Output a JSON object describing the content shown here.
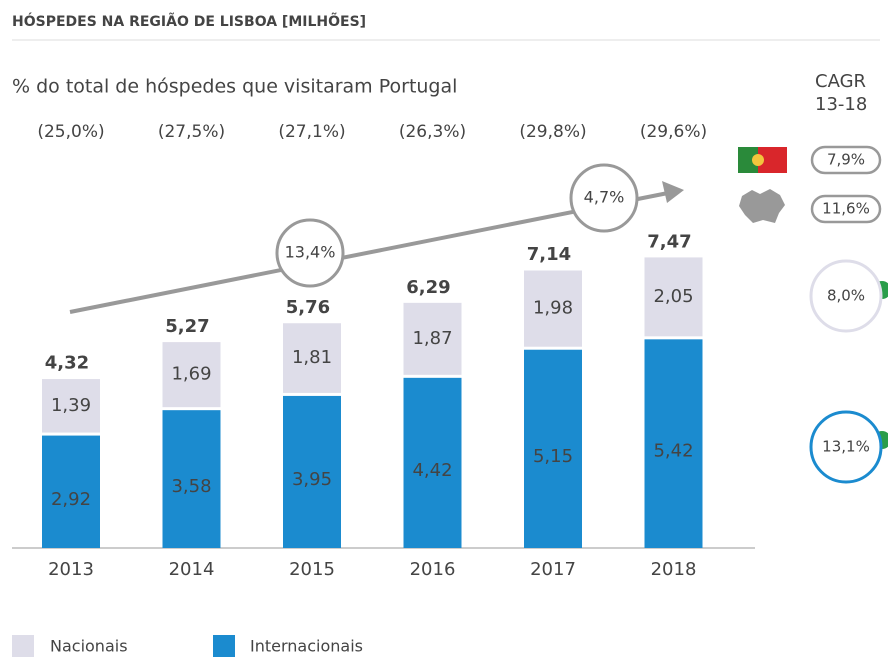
{
  "chart_data": {
    "type": "stacked_bar",
    "title": "HÓSPEDES NA REGIÃO DE LISBOA [MILHÕES]",
    "subtitle": "% do total de hóspedes que visitaram Portugal",
    "categories": [
      "2013",
      "2014",
      "2015",
      "2016",
      "2017",
      "2018"
    ],
    "series": [
      {
        "name": "Internacionais",
        "color": "#1b8bcf",
        "values": [
          2.92,
          3.58,
          3.95,
          4.42,
          5.15,
          5.42
        ],
        "value_labels": [
          "2,92",
          "3,58",
          "3,95",
          "4,42",
          "5,15",
          "5,42"
        ]
      },
      {
        "name": "Nacionais",
        "color": "#dedde9",
        "values": [
          1.39,
          1.69,
          1.81,
          1.87,
          1.98,
          2.05
        ],
        "value_labels": [
          "1,39",
          "1,69",
          "1,81",
          "1,87",
          "1,98",
          "2,05"
        ]
      }
    ],
    "totals": [
      4.32,
      5.27,
      5.76,
      6.29,
      7.14,
      7.47
    ],
    "total_labels": [
      "4,32",
      "5,27",
      "5,76",
      "6,29",
      "7,14",
      "7,47"
    ],
    "shares": [
      25.0,
      27.5,
      27.1,
      26.3,
      29.8,
      29.6
    ],
    "share_labels": [
      "(25,0%)",
      "(27,5%)",
      "(27,1%)",
      "(26,3%)",
      "(29,8%)",
      "(29,6%)"
    ],
    "annotations": [
      {
        "value": 13.4,
        "label": "13,4%"
      },
      {
        "value": 4.7,
        "label": "4,7%"
      }
    ],
    "cagr": {
      "title": "CAGR",
      "period": "13-18",
      "portugal": {
        "value": 7.9,
        "label": "7,9%"
      },
      "lisboa": {
        "value": 11.6,
        "label": "11,6%"
      },
      "nacionais": {
        "value": 8.0,
        "label": "8,0%"
      },
      "internacionais": {
        "value": 13.1,
        "label": "13,1%"
      }
    }
  }
}
